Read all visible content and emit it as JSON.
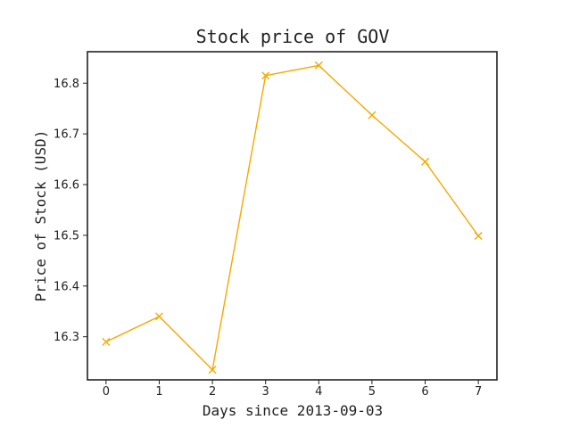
{
  "chart_data": {
    "type": "line",
    "title": "Stock price of GOV",
    "xlabel": "Days since 2013-09-03",
    "ylabel": "Price of Stock (USD)",
    "x": [
      0,
      1,
      2,
      3,
      4,
      5,
      6,
      7
    ],
    "series": [
      {
        "values": [
          16.29,
          16.34,
          16.235,
          16.815,
          16.835,
          16.737,
          16.645,
          16.499
        ],
        "color": "#f5a800",
        "marker": "x"
      }
    ],
    "xticks": [
      "0",
      "1",
      "2",
      "3",
      "4",
      "5",
      "6",
      "7"
    ],
    "yticks": [
      "16.3",
      "16.4",
      "16.5",
      "16.6",
      "16.7",
      "16.8"
    ],
    "ytick_values": [
      16.3,
      16.4,
      16.5,
      16.6,
      16.7,
      16.8
    ],
    "xlim": [
      -0.35,
      7.35
    ],
    "ylim": [
      16.215,
      16.862
    ],
    "grid": false,
    "legend": false
  }
}
